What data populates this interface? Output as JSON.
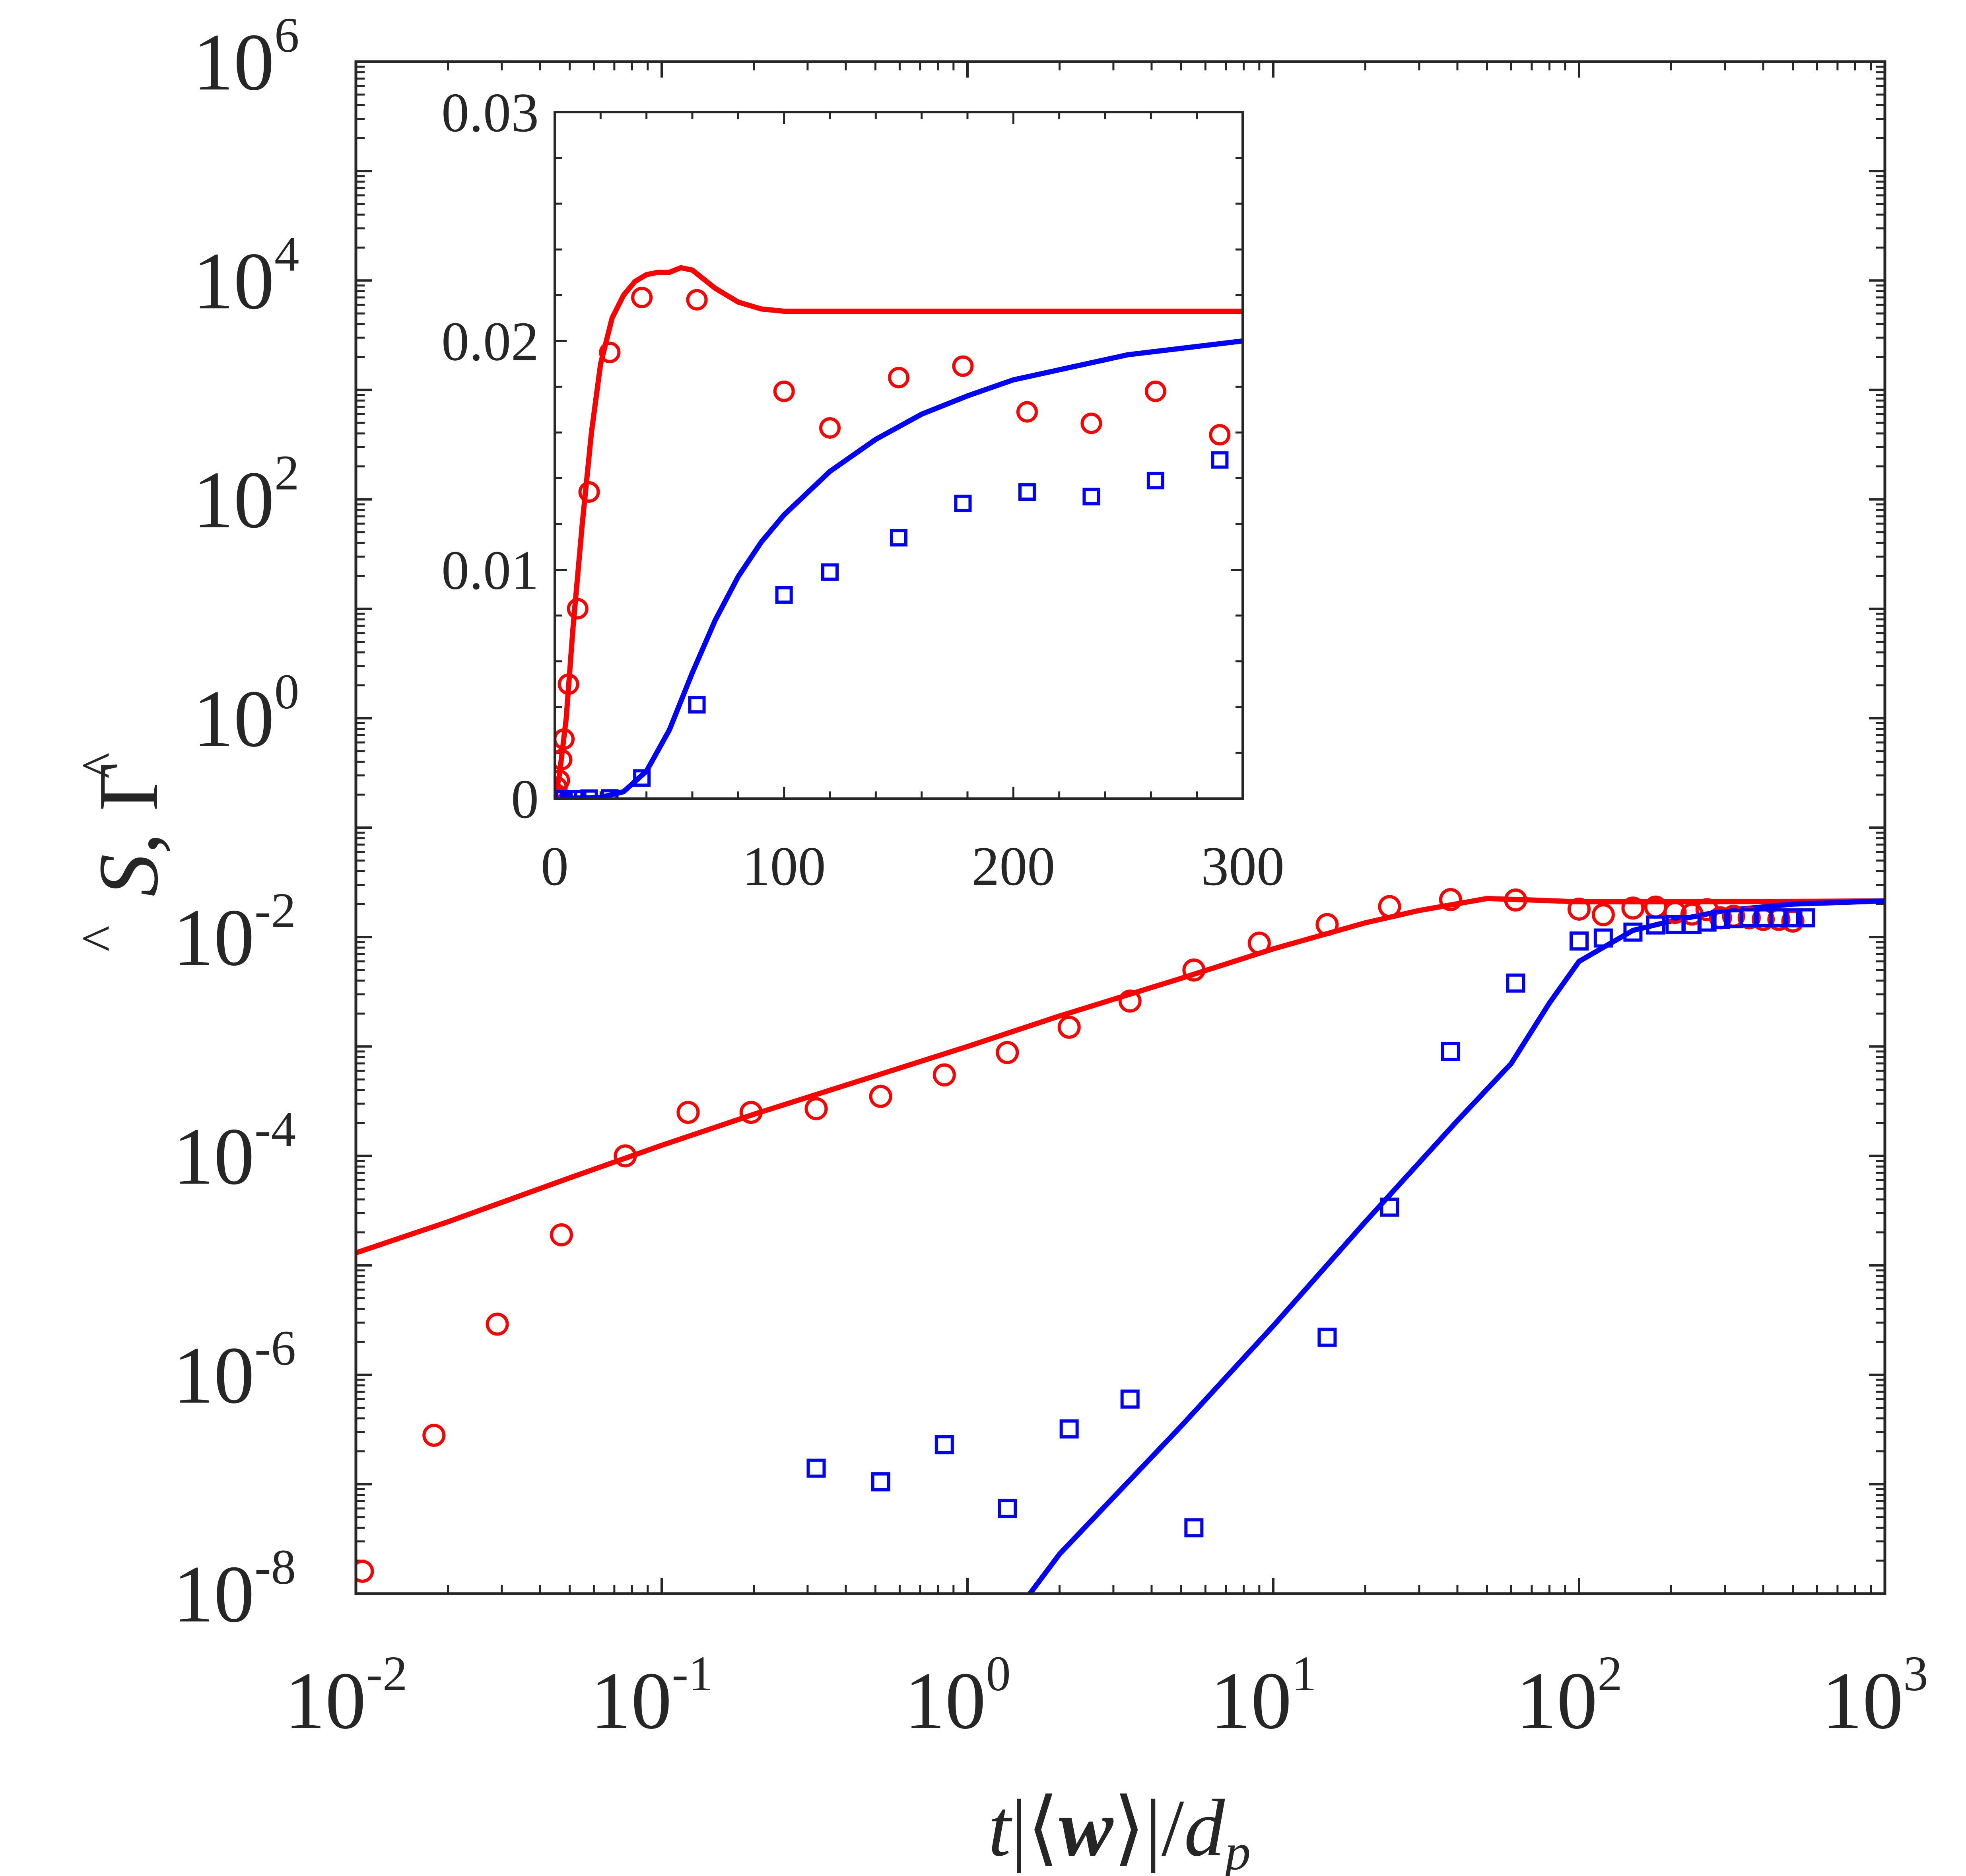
{
  "colors": {
    "axis": "#262626",
    "series_s": "#ff0000",
    "series_gamma": "#0000ff",
    "background": "#ffffff"
  },
  "chart_data": [
    {
      "id": "main",
      "type": "scatter",
      "xscale": "log",
      "yscale": "log",
      "xlim": [
        0.01,
        1000
      ],
      "ylim": [
        1e-08,
        1000000.0
      ],
      "x_ticks": [
        {
          "base": "10",
          "exp": "-2",
          "value": 0.01
        },
        {
          "base": "10",
          "exp": "-1",
          "value": 0.1
        },
        {
          "base": "10",
          "exp": "0",
          "value": 1
        },
        {
          "base": "10",
          "exp": "1",
          "value": 10
        },
        {
          "base": "10",
          "exp": "2",
          "value": 100
        },
        {
          "base": "10",
          "exp": "3",
          "value": 1000
        }
      ],
      "y_ticks": [
        {
          "base": "10",
          "exp": "-8",
          "value": 1e-08
        },
        {
          "base": "10",
          "exp": "-6",
          "value": 1e-06
        },
        {
          "base": "10",
          "exp": "-4",
          "value": 0.0001
        },
        {
          "base": "10",
          "exp": "-2",
          "value": 0.01
        },
        {
          "base": "10",
          "exp": "0",
          "value": 1
        },
        {
          "base": "10",
          "exp": "2",
          "value": 100
        },
        {
          "base": "10",
          "exp": "4",
          "value": 10000
        },
        {
          "base": "10",
          "exp": "6",
          "value": 1000000
        }
      ],
      "xlabel": {
        "t": "t",
        "bar_open": "|",
        "lang": "⟨",
        "w": "w",
        "rang": "⟩",
        "bar_close": "|",
        "slash": "/",
        "d": "d",
        "sub": "p"
      },
      "ylabel": {
        "s": "S",
        "comma": ",",
        "gamma": "Γ",
        "hat": "^"
      },
      "series": [
        {
          "name": "S line",
          "kind": "line",
          "color": "#ff0000",
          "x": [
            0.01,
            0.02,
            0.05,
            0.1,
            0.2,
            0.5,
            1,
            2,
            5,
            10,
            20,
            30,
            50,
            70,
            100,
            200,
            500,
            1000
          ],
          "y": [
            1.3e-05,
            2.5e-05,
            6.3e-05,
            0.000125,
            0.00024,
            0.00054,
            0.001,
            0.0019,
            0.0042,
            0.0078,
            0.0135,
            0.0175,
            0.0225,
            0.0218,
            0.021,
            0.021,
            0.0212,
            0.0214
          ]
        },
        {
          "name": "Gamma line",
          "kind": "line",
          "color": "#0000ff",
          "x": [
            1.6,
            2,
            5,
            10,
            20,
            40,
            60,
            80,
            100,
            150,
            200,
            300,
            500,
            1000
          ],
          "y": [
            1e-08,
            2.3e-08,
            3.4e-07,
            2.8e-06,
            2.5e-05,
            0.00021,
            0.0007,
            0.0025,
            0.006,
            0.0115,
            0.014,
            0.0175,
            0.02,
            0.0214
          ]
        },
        {
          "name": "S markers",
          "kind": "markers",
          "marker": "circle",
          "color": "#ff0000",
          "x": [
            0.0105,
            0.018,
            0.029,
            0.047,
            0.076,
            0.122,
            0.196,
            0.32,
            0.52,
            0.84,
            1.35,
            2.15,
            3.4,
            5.5,
            9,
            15,
            24,
            38,
            62,
            100,
            120,
            150,
            178,
            206,
            234,
            262,
            290,
            320,
            360,
            400,
            450,
            500
          ],
          "y": [
            1.6e-08,
            2.8e-07,
            2.9e-06,
            1.9e-05,
            0.0001,
            0.00025,
            0.00025,
            0.00027,
            0.00035,
            0.00055,
            0.00088,
            0.0015,
            0.0026,
            0.005,
            0.0088,
            0.013,
            0.019,
            0.022,
            0.0218,
            0.018,
            0.016,
            0.0184,
            0.0188,
            0.0168,
            0.0162,
            0.0178,
            0.015,
            0.0155,
            0.015,
            0.0145,
            0.0145,
            0.014
          ]
        },
        {
          "name": "Gamma markers",
          "kind": "markers",
          "marker": "square",
          "color": "#0000ff",
          "x": [
            0.32,
            0.52,
            0.84,
            1.35,
            2.15,
            3.4,
            5.5,
            15,
            24,
            38,
            62,
            100,
            120,
            150,
            178,
            206,
            234,
            262,
            290,
            320,
            360,
            400,
            450,
            500,
            550
          ],
          "y": [
            1.4e-07,
            1.05e-07,
            2.3e-07,
            6e-08,
            3.2e-07,
            6e-07,
            4e-08,
            2.2e-06,
            3.4e-05,
            0.0009,
            0.0038,
            0.0092,
            0.0098,
            0.0111,
            0.0129,
            0.013,
            0.013,
            0.0137,
            0.0145,
            0.0147,
            0.015,
            0.015,
            0.015,
            0.015,
            0.015
          ]
        }
      ]
    },
    {
      "id": "inset",
      "type": "scatter",
      "xscale": "linear",
      "yscale": "linear",
      "xlim": [
        0,
        300
      ],
      "ylim": [
        0,
        0.03
      ],
      "x_tick_labels": [
        "0",
        "100",
        "200",
        "300"
      ],
      "x_tick_values": [
        0,
        100,
        200,
        300
      ],
      "y_tick_labels": [
        "0",
        "0.01",
        "0.02",
        "0.03"
      ],
      "y_tick_values": [
        0,
        0.01,
        0.02,
        0.03
      ],
      "series": [
        {
          "name": "S line",
          "kind": "line",
          "color": "#ff0000",
          "x": [
            0,
            2,
            5,
            8,
            12,
            16,
            20,
            25,
            30,
            35,
            40,
            45,
            50,
            55,
            60,
            65,
            70,
            80,
            90,
            100,
            120,
            150,
            200,
            250,
            300
          ],
          "y": [
            0,
            0.001,
            0.0035,
            0.0075,
            0.012,
            0.016,
            0.019,
            0.021,
            0.022,
            0.0226,
            0.0229,
            0.023,
            0.023,
            0.0232,
            0.0231,
            0.0227,
            0.0223,
            0.0217,
            0.0214,
            0.0213,
            0.0213,
            0.0213,
            0.0213,
            0.0213,
            0.0213
          ]
        },
        {
          "name": "Gamma line",
          "kind": "line",
          "color": "#0000ff",
          "x": [
            0,
            20,
            30,
            40,
            50,
            60,
            70,
            80,
            90,
            100,
            120,
            140,
            160,
            180,
            200,
            250,
            300
          ],
          "y": [
            0,
            5e-05,
            0.0003,
            0.0012,
            0.003,
            0.0055,
            0.0078,
            0.0097,
            0.0112,
            0.0124,
            0.0143,
            0.0157,
            0.0168,
            0.0176,
            0.0183,
            0.0194,
            0.02
          ]
        },
        {
          "name": "S markers",
          "kind": "markers",
          "marker": "circle",
          "color": "#ff0000",
          "x": [
            0.5,
            1,
            2,
            3,
            4,
            6,
            10,
            15,
            24,
            38,
            62,
            100,
            120,
            150,
            178,
            206,
            234,
            262,
            290
          ],
          "y": [
            0.0002,
            0.0005,
            0.0008,
            0.0017,
            0.0026,
            0.005,
            0.0083,
            0.0134,
            0.0195,
            0.0219,
            0.0218,
            0.0178,
            0.0162,
            0.0184,
            0.0189,
            0.0169,
            0.0164,
            0.0178,
            0.0159
          ]
        },
        {
          "name": "Gamma markers",
          "kind": "markers",
          "marker": "square",
          "color": "#0000ff",
          "x": [
            0.5,
            1,
            2,
            3,
            4,
            6,
            10,
            15,
            24,
            38,
            62,
            100,
            120,
            150,
            178,
            206,
            234,
            262,
            290
          ],
          "y": [
            0,
            0,
            0,
            0,
            0,
            0,
            0,
            2e-05,
            3e-05,
            0.0009,
            0.0041,
            0.0089,
            0.0099,
            0.0114,
            0.0129,
            0.0134,
            0.0132,
            0.0139,
            0.0148
          ]
        }
      ]
    }
  ]
}
